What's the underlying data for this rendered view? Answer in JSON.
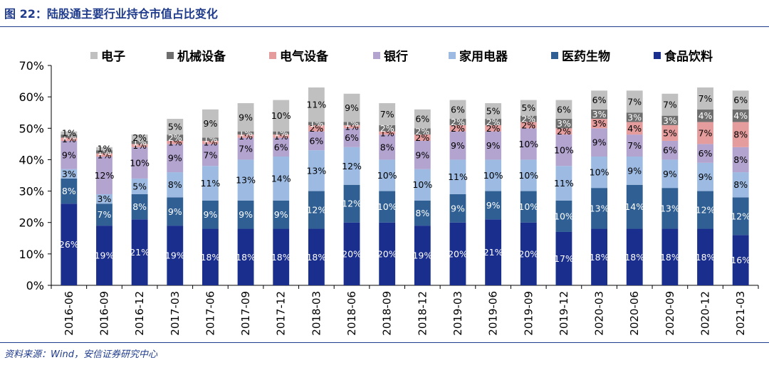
{
  "figure": {
    "title": "图 22：陆股通主要行业持仓市值占比变化",
    "source": "资料来源：Wind，安信证券研究中心"
  },
  "legend": [
    {
      "name": "电子",
      "color": "#c0c0c0"
    },
    {
      "name": "机械设备",
      "color": "#6e6e6e"
    },
    {
      "name": "电气设备",
      "color": "#e59c9c"
    },
    {
      "name": "银行",
      "color": "#b3a3cf"
    },
    {
      "name": "家用电器",
      "color": "#9dbbe2"
    },
    {
      "name": "医药生物",
      "color": "#2f5f93"
    },
    {
      "name": "食品饮料",
      "color": "#1a2e8e"
    }
  ],
  "chart_data": {
    "type": "bar",
    "stacked": true,
    "categories": [
      "2016-06",
      "2016-09",
      "2016-12",
      "2017-03",
      "2017-06",
      "2017-09",
      "2017-12",
      "2018-03",
      "2018-06",
      "2018-09",
      "2018-12",
      "2019-03",
      "2019-06",
      "2019-09",
      "2019-12",
      "2020-03",
      "2020-06",
      "2020-09",
      "2020-12",
      "2021-03"
    ],
    "ylim": [
      0,
      70
    ],
    "yticks": [
      "0%",
      "10%",
      "20%",
      "30%",
      "40%",
      "50%",
      "60%",
      "70%"
    ],
    "legend_position": "top",
    "series": [
      {
        "name": "食品饮料",
        "color": "#1a2e8e",
        "label_color": "#ffffff",
        "values": [
          26,
          19,
          21,
          19,
          18,
          18,
          18,
          18,
          20,
          20,
          19,
          20,
          21,
          20,
          17,
          18,
          18,
          18,
          18,
          16
        ]
      },
      {
        "name": "医药生物",
        "color": "#2f5f93",
        "label_color": "#ffffff",
        "values": [
          8,
          7,
          8,
          9,
          9,
          9,
          9,
          12,
          12,
          10,
          8,
          9,
          9,
          10,
          10,
          13,
          14,
          13,
          12,
          12
        ]
      },
      {
        "name": "家用电器",
        "color": "#9dbbe2",
        "label_color": "#000000",
        "values": [
          3,
          3,
          5,
          8,
          11,
          13,
          14,
          13,
          12,
          10,
          10,
          11,
          10,
          10,
          11,
          10,
          9,
          9,
          9,
          8
        ]
      },
      {
        "name": "银行",
        "color": "#b3a3cf",
        "label_color": "#000000",
        "values": [
          9,
          12,
          10,
          9,
          7,
          7,
          6,
          6,
          6,
          8,
          9,
          9,
          9,
          10,
          10,
          9,
          7,
          6,
          6,
          8
        ]
      },
      {
        "name": "电气设备",
        "color": "#e59c9c",
        "label_color": "#000000",
        "values": [
          1,
          1,
          1,
          1,
          1,
          1,
          1,
          2,
          1,
          1,
          2,
          2,
          2,
          2,
          2,
          3,
          4,
          5,
          7,
          8
        ]
      },
      {
        "name": "机械设备",
        "color": "#6e6e6e",
        "label_color": "#ffffff",
        "values": [
          1,
          1,
          1,
          2,
          1,
          1,
          1,
          1,
          1,
          2,
          2,
          2,
          2,
          2,
          3,
          3,
          3,
          3,
          4,
          4
        ]
      },
      {
        "name": "电子",
        "color": "#c0c0c0",
        "label_color": "#000000",
        "values": [
          1,
          1,
          2,
          5,
          9,
          9,
          10,
          11,
          9,
          7,
          6,
          6,
          5,
          5,
          6,
          6,
          7,
          7,
          7,
          6
        ]
      }
    ]
  }
}
